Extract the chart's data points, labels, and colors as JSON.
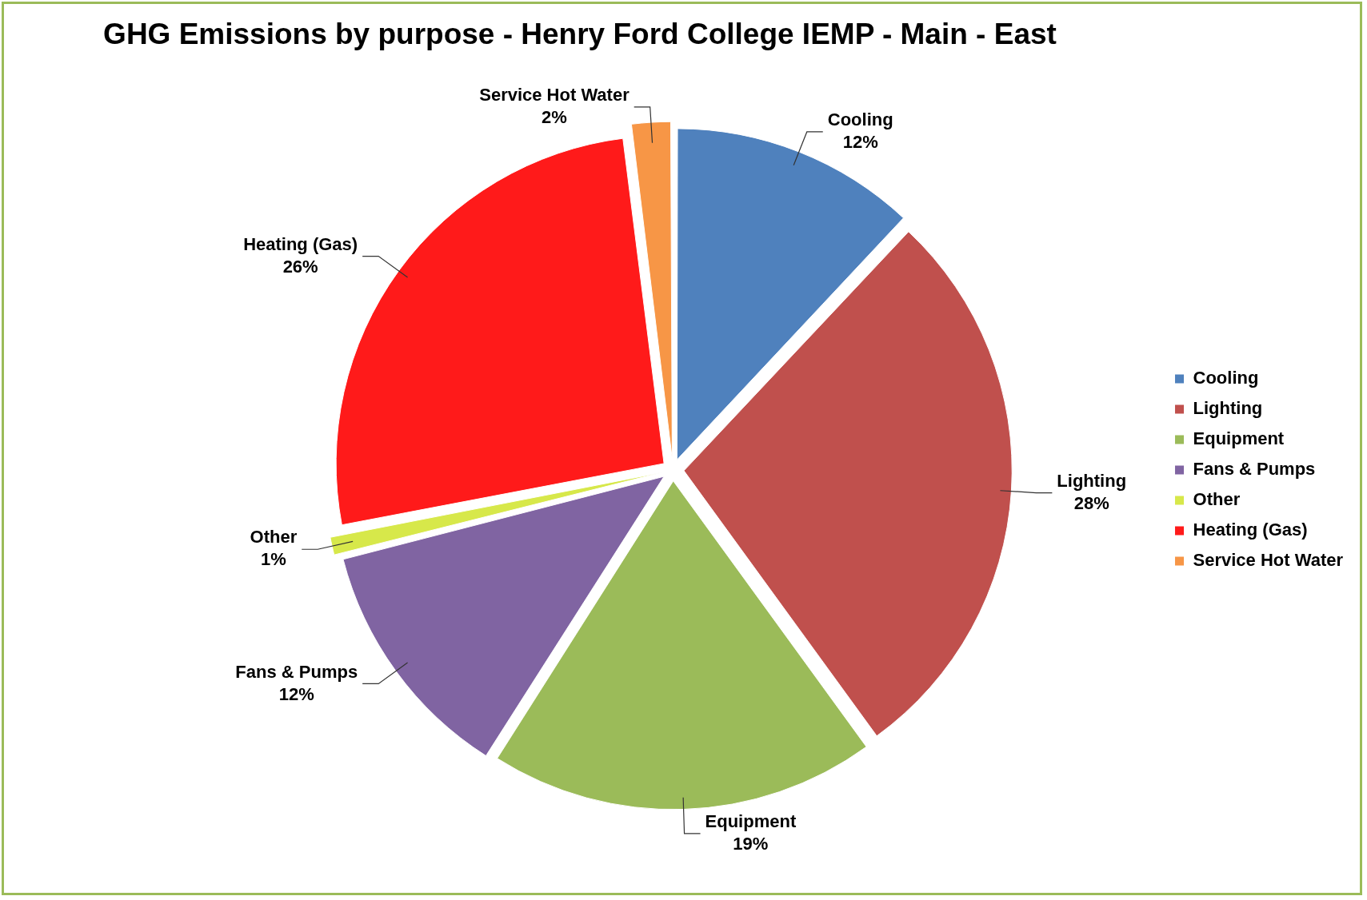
{
  "chart_data": {
    "type": "pie",
    "title": "GHG Emissions by purpose - Henry Ford College IEMP - Main - East",
    "categories": [
      "Cooling",
      "Lighting",
      "Equipment",
      "Fans & Pumps",
      "Other",
      "Heating (Gas)",
      "Service Hot Water"
    ],
    "values": [
      12,
      28,
      19,
      12,
      1,
      26,
      2
    ],
    "value_labels": [
      "12%",
      "28%",
      "19%",
      "12%",
      "1%",
      "26%",
      "2%"
    ],
    "colors": [
      "#4f81bd",
      "#c0504d",
      "#9bbb59",
      "#8064a2",
      "#d7e84a",
      "#ff1a1a",
      "#f79646"
    ],
    "legend": "right"
  }
}
